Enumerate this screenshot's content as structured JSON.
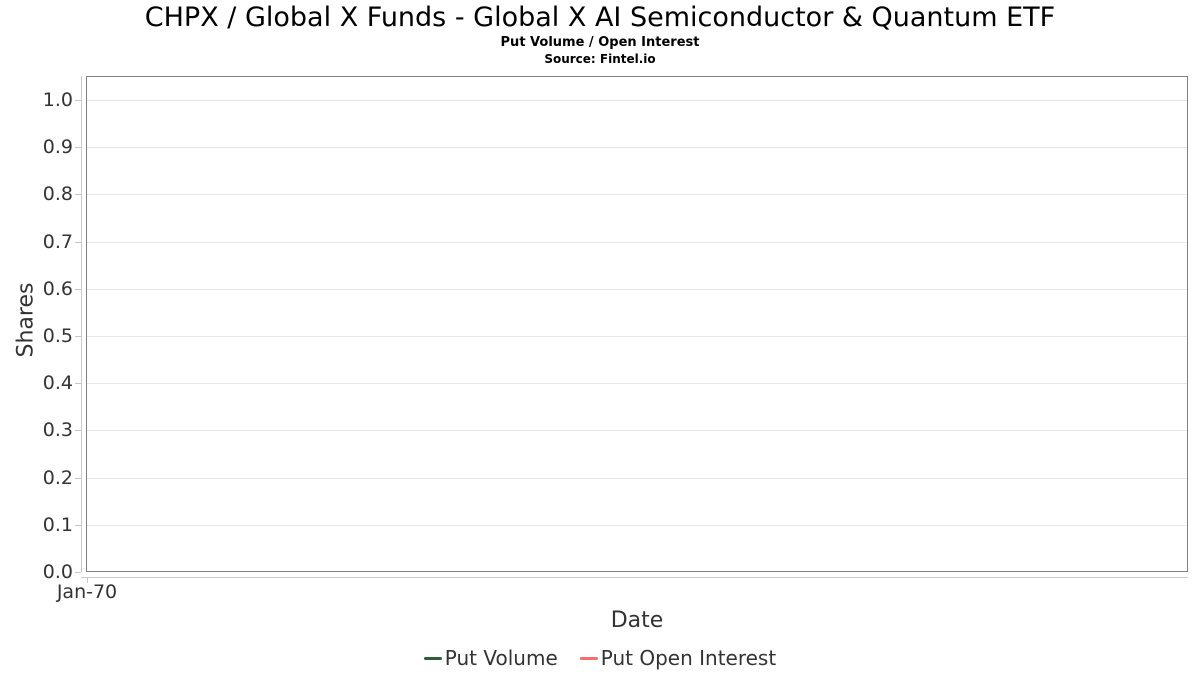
{
  "header": {
    "title": "CHPX / Global X Funds - Global X AI Semiconductor & Quantum ETF",
    "subtitle": "Put Volume / Open Interest",
    "source": "Source: Fintel.io"
  },
  "chart_data": {
    "type": "line",
    "title": "CHPX / Global X Funds - Global X AI Semiconductor & Quantum ETF",
    "subtitle": "Put Volume / Open Interest",
    "source": "Source: Fintel.io",
    "xlabel": "Date",
    "ylabel": "Shares",
    "ylim": [
      0.0,
      1.0
    ],
    "y_tick_labels_top_to_bottom": [
      "1.0",
      "0.9",
      "0.8",
      "0.7",
      "0.6",
      "0.5",
      "0.4",
      "0.3",
      "0.2",
      "0.1",
      "0.0"
    ],
    "x_tick_labels": [
      "Jan-70"
    ],
    "x_tick_fractions": [
      0.0
    ],
    "grid": "horizontal gridlines on, no vertical gridlines",
    "legend_position": "bottom-center",
    "plot_empty": true,
    "series": [
      {
        "name": "Put Volume",
        "color": "#2e5e3c",
        "x": [],
        "values": []
      },
      {
        "name": "Put Open Interest",
        "color": "#f96d6d",
        "x": [],
        "values": []
      }
    ]
  },
  "colors": {
    "background": "#ffffff",
    "plot_border": "#808080",
    "grid_line": "#e6e6e6",
    "axis_line": "#c9c9c9",
    "axis_text": "#333333",
    "title_text": "#000000",
    "put_volume": "#2e5e3c",
    "put_open_interest": "#f96d6d"
  }
}
